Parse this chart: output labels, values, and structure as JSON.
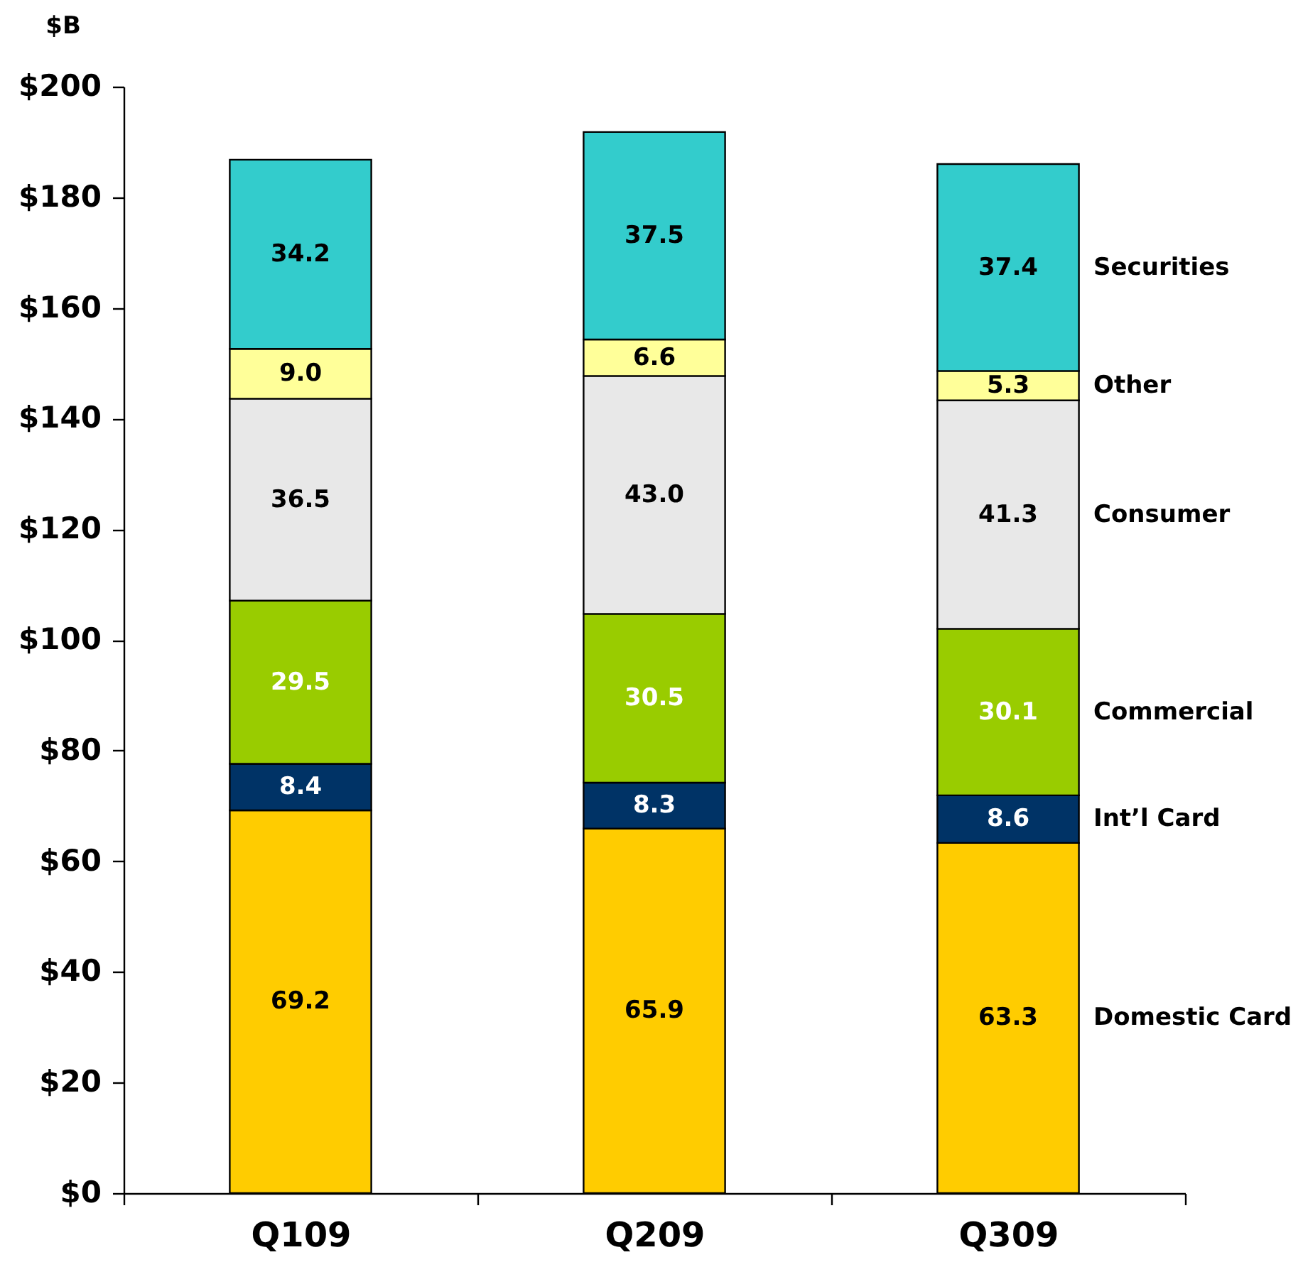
{
  "chart_data": {
    "type": "bar",
    "stacked": true,
    "ylabel": "$B",
    "categories": [
      "Q109",
      "Q209",
      "Q309"
    ],
    "series": [
      {
        "name": "Domestic Card",
        "color": "#ffcc00",
        "values": [
          69.2,
          65.9,
          63.3
        ],
        "value_labels": [
          "69.2",
          "65.9",
          "63.3"
        ]
      },
      {
        "name": "Int’l Card",
        "color": "#003366",
        "values": [
          8.4,
          8.3,
          8.6
        ],
        "value_labels": [
          "8.4",
          "8.3",
          "8.6"
        ]
      },
      {
        "name": "Commercial",
        "color": "#99cc00",
        "values": [
          29.5,
          30.5,
          30.1
        ],
        "value_labels": [
          "29.5",
          "30.5",
          "30.1"
        ]
      },
      {
        "name": "Consumer",
        "color": "#e8e8e8",
        "values": [
          36.5,
          43.0,
          41.3
        ],
        "value_labels": [
          "36.5",
          "43.0",
          "41.3"
        ]
      },
      {
        "name": "Other",
        "color": "#ffff99",
        "values": [
          9.0,
          6.6,
          5.3
        ],
        "value_labels": [
          "9.0",
          "6.6",
          "5.3"
        ]
      },
      {
        "name": "Securities",
        "color": "#33cccc",
        "values": [
          34.2,
          37.5,
          37.4
        ],
        "value_labels": [
          "34.2",
          "37.5",
          "37.4"
        ]
      }
    ],
    "ylim": [
      0,
      200
    ],
    "yticks": [
      {
        "value": 0,
        "label": "$0"
      },
      {
        "value": 20,
        "label": "$20"
      },
      {
        "value": 40,
        "label": "$40"
      },
      {
        "value": 60,
        "label": "$60"
      },
      {
        "value": 80,
        "label": "$80"
      },
      {
        "value": 100,
        "label": "$100"
      },
      {
        "value": 120,
        "label": "$120"
      },
      {
        "value": 140,
        "label": "$140"
      },
      {
        "value": 160,
        "label": "$160"
      },
      {
        "value": 180,
        "label": "$180"
      },
      {
        "value": 200,
        "label": "$200"
      }
    ]
  }
}
